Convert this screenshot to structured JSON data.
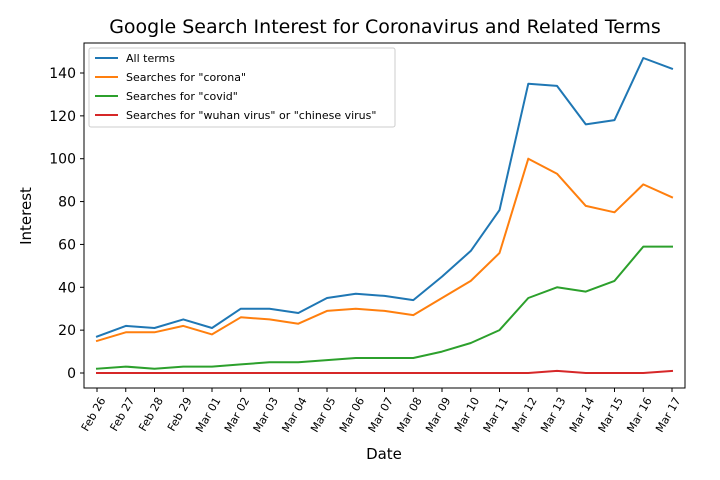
{
  "chart_data": {
    "type": "line",
    "title": "Google Search Interest for Coronavirus and Related Terms",
    "xlabel": "Date",
    "ylabel": "Interest",
    "ylim": [
      -7,
      154
    ],
    "yticks": [
      0,
      20,
      40,
      60,
      80,
      100,
      120,
      140
    ],
    "grid": false,
    "legend_position": "top-left",
    "categories": [
      "Feb 26",
      "Feb 27",
      "Feb 28",
      "Feb 29",
      "Mar 01",
      "Mar 02",
      "Mar 03",
      "Mar 04",
      "Mar 05",
      "Mar 06",
      "Mar 07",
      "Mar 08",
      "Mar 09",
      "Mar 10",
      "Mar 11",
      "Mar 12",
      "Mar 13",
      "Mar 14",
      "Mar 15",
      "Mar 16",
      "Mar 17"
    ],
    "series": [
      {
        "name": "All terms",
        "color": "#1f77b4",
        "values": [
          17,
          22,
          21,
          25,
          21,
          30,
          30,
          28,
          35,
          37,
          36,
          34,
          45,
          57,
          76,
          135,
          134,
          116,
          118,
          147,
          142
        ]
      },
      {
        "name": "Searches for \"corona\"",
        "color": "#ff7f0e",
        "values": [
          15,
          19,
          19,
          22,
          18,
          26,
          25,
          23,
          29,
          30,
          29,
          27,
          35,
          43,
          56,
          100,
          93,
          78,
          75,
          88,
          82
        ]
      },
      {
        "name": "Searches for \"covid\"",
        "color": "#2ca02c",
        "values": [
          2,
          3,
          2,
          3,
          3,
          4,
          5,
          5,
          6,
          7,
          7,
          7,
          10,
          14,
          20,
          35,
          40,
          38,
          43,
          59,
          59
        ]
      },
      {
        "name": "Searches for \"wuhan virus\" or \"chinese virus\"",
        "color": "#d62728",
        "values": [
          0,
          0,
          0,
          0,
          0,
          0,
          0,
          0,
          0,
          0,
          0,
          0,
          0,
          0,
          0,
          0,
          1,
          0,
          0,
          0,
          1
        ]
      }
    ]
  }
}
